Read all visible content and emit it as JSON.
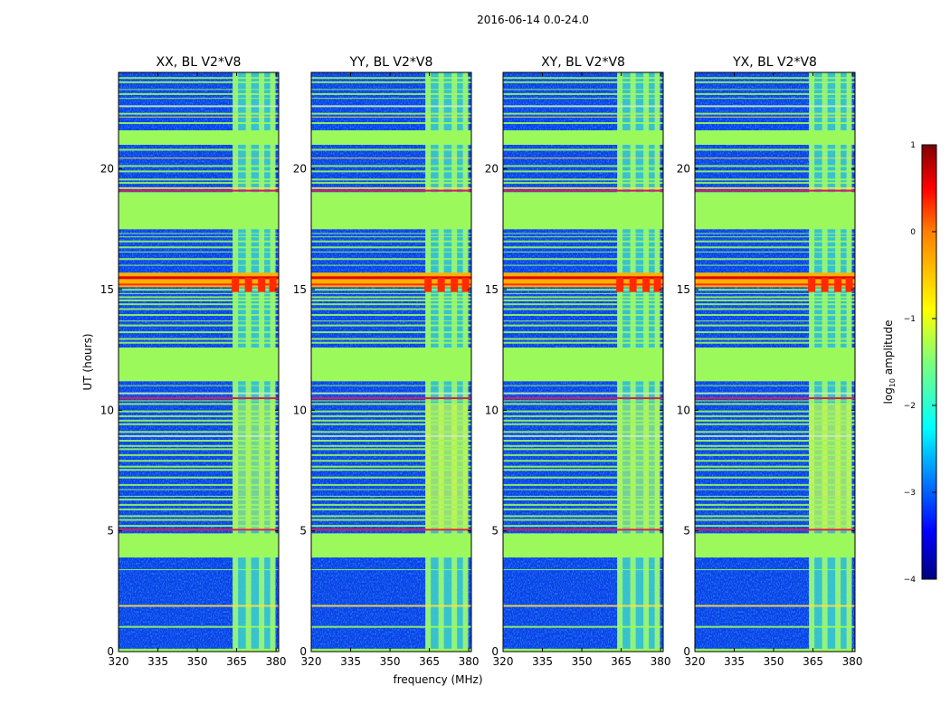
{
  "figure_title": "2016-06-14 0.0-24.0",
  "chart_data": {
    "type": "heatmap",
    "title": "2016-06-14 0.0-24.0",
    "xlabel": "frequency (MHz)",
    "ylabel": "UT (hours)",
    "x_range": [
      320,
      381
    ],
    "y_range": [
      0,
      24
    ],
    "x_ticks": [
      320,
      335,
      350,
      365,
      380
    ],
    "y_ticks": [
      0,
      5,
      10,
      15,
      20
    ],
    "panels": [
      {
        "title": "XX, BL V2*V8",
        "polarization": "XX"
      },
      {
        "title": "YY, BL V2*V8",
        "polarization": "YY"
      },
      {
        "title": "XY, BL V2*V8",
        "polarization": "XY"
      },
      {
        "title": "YX, BL V2*V8",
        "polarization": "YX"
      }
    ],
    "colorbar": {
      "label": "log10 amplitude",
      "label_main": "log",
      "label_sub": "10",
      "label_rest": " amplitude",
      "range": [
        -4,
        1
      ],
      "ticks": [
        1,
        0,
        -1,
        -2,
        -3,
        -4
      ],
      "tick_labels": [
        "1",
        "0",
        "−1",
        "−2",
        "−3",
        "−4"
      ],
      "colormap": "jet"
    },
    "flagged_bands_hours": [
      [
        3.9,
        4.9
      ],
      [
        11.2,
        12.6
      ],
      [
        17.5,
        19.0
      ],
      [
        21.0,
        21.6
      ]
    ],
    "rfi_band_MHz": [
      363.5,
      379.5
    ],
    "rfi_channels_MHz": [
      364.5,
      369.5,
      374.5,
      378.8
    ],
    "strong_rfi_hours": [
      15.1,
      15.7
    ]
  }
}
